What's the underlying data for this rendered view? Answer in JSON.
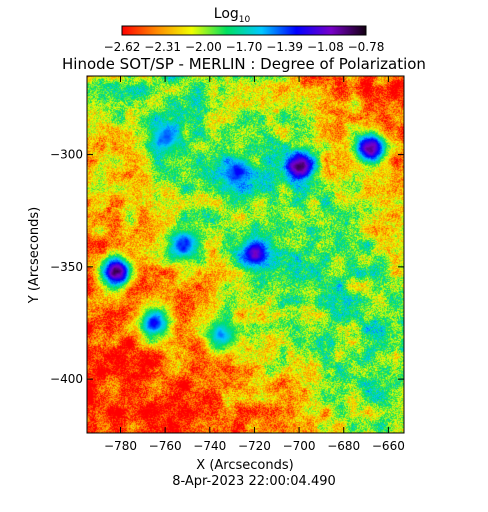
{
  "chart_data": {
    "type": "heatmap",
    "title": "Hinode SOT/SP - MERLIN : Degree of Polarization",
    "xlabel": "X (Arcseconds)",
    "ylabel": "Y (Arcseconds)",
    "timestamp": "8-Apr-2023 22:00:04.490",
    "colorbar": {
      "label": "Log",
      "label_subscript": "10",
      "tick_labels": [
        "-2.62",
        "-2.31",
        "-2.00",
        "-1.70",
        "-1.39",
        "-1.08",
        "-0.78"
      ],
      "range": [
        -2.62,
        -0.78
      ],
      "colormap": [
        "#ff0000",
        "#ff8a00",
        "#f0ff00",
        "#00e060",
        "#00c8ff",
        "#0000ff",
        "#7800c8",
        "#120010"
      ]
    },
    "xlim": [
      -795,
      -653
    ],
    "ylim": [
      -424,
      -265
    ],
    "x_ticks": [
      -780,
      -760,
      -740,
      -720,
      -700,
      -680,
      -660
    ],
    "y_ticks": [
      -300,
      -350,
      -400
    ],
    "x_tick_labels": [
      "-780",
      "-760",
      "-740",
      "-720",
      "-700",
      "-680",
      "-660"
    ],
    "y_tick_labels": [
      "-300",
      "-350",
      "-400"
    ],
    "features": [
      {
        "x": -700,
        "y": -305,
        "value": -0.9
      },
      {
        "x": -668,
        "y": -297,
        "value": -0.95
      },
      {
        "x": -782,
        "y": -352,
        "value": -0.9
      },
      {
        "x": -720,
        "y": -344,
        "value": -1.1
      },
      {
        "x": -752,
        "y": -340,
        "value": -1.3
      },
      {
        "x": -728,
        "y": -308,
        "value": -1.3
      },
      {
        "x": -760,
        "y": -292,
        "value": -1.4
      },
      {
        "x": -765,
        "y": -375,
        "value": -1.3
      },
      {
        "x": -735,
        "y": -380,
        "value": -1.5
      }
    ]
  }
}
